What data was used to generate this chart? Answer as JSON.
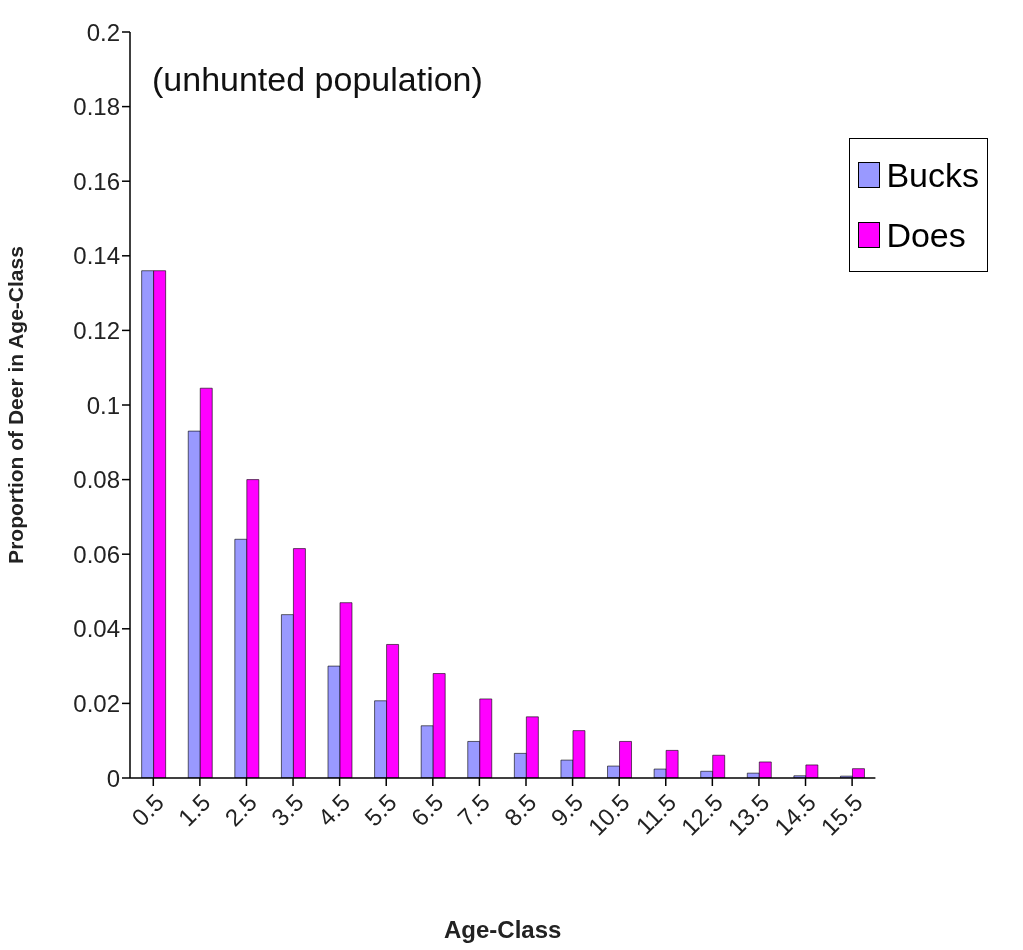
{
  "chart_data": {
    "type": "bar",
    "xlabel": "Age-Class",
    "ylabel": "Proportion of Deer in Age-Class",
    "annotations": [
      "(unhunted population)"
    ],
    "categories": [
      "0.5",
      "1.5",
      "2.5",
      "3.5",
      "4.5",
      "5.5",
      "6.5",
      "7.5",
      "8.5",
      "9.5",
      "10.5",
      "11.5",
      "12.5",
      "13.5",
      "14.5",
      "15.5"
    ],
    "series": [
      {
        "name": "Bucks",
        "color": "#9999ff",
        "values": [
          0.136,
          0.093,
          0.064,
          0.0438,
          0.03,
          0.0207,
          0.014,
          0.0098,
          0.0066,
          0.0048,
          0.0032,
          0.0024,
          0.0018,
          0.0013,
          0.0006,
          0.0005
        ]
      },
      {
        "name": "Does",
        "color": "#ff00ff",
        "values": [
          0.136,
          0.1045,
          0.08,
          0.0615,
          0.047,
          0.0358,
          0.028,
          0.0212,
          0.0164,
          0.0127,
          0.0098,
          0.0074,
          0.0061,
          0.0043,
          0.0035,
          0.0025
        ]
      }
    ],
    "ylim": [
      0,
      0.2
    ],
    "yticks": [
      0,
      0.02,
      0.04,
      0.06,
      0.08,
      0.1,
      0.12,
      0.14,
      0.16,
      0.18,
      0.2
    ],
    "grid": false,
    "legend": "top right"
  }
}
